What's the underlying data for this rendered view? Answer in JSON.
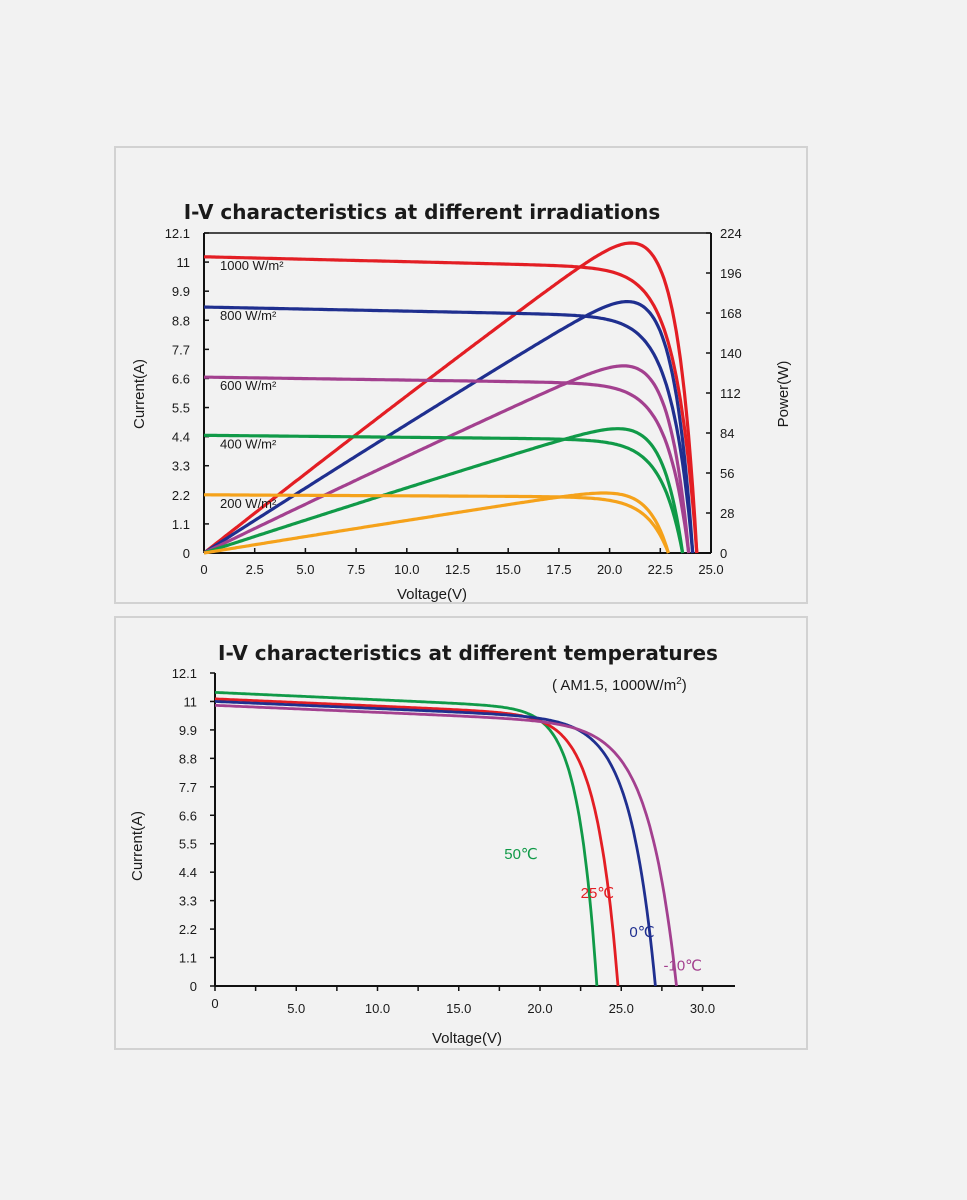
{
  "chart_data": [
    {
      "type": "line",
      "title": "I-V characteristics at different irradiations",
      "xlabel": "Voltage(V)",
      "ylabel": "Current(A)",
      "y2label": "Power(W)",
      "xlim": [
        0,
        25
      ],
      "ylim": [
        0,
        12.1
      ],
      "y2lim": [
        0,
        224
      ],
      "x_ticks": [
        "0",
        "2.5",
        "5.0",
        "7.5",
        "10.0",
        "12.5",
        "15.0",
        "17.5",
        "20.0",
        "22.5",
        "25.0"
      ],
      "y_ticks": [
        "0",
        "1.1",
        "2.2",
        "3.3",
        "4.4",
        "5.5",
        "6.6",
        "7.7",
        "8.8",
        "9.9",
        "11",
        "12.1"
      ],
      "y2_ticks": [
        "0",
        "28",
        "56",
        "84",
        "112",
        "140",
        "168",
        "196",
        "224"
      ],
      "series": [
        {
          "name": "1000 W/m²",
          "color": "#e31e24",
          "isc": 11.2,
          "voc": 24.3,
          "pmax": 217,
          "vmp": 19.8
        },
        {
          "name": "800 W/m²",
          "color": "#1f2f8f",
          "isc": 9.3,
          "voc": 24.1,
          "pmax": 176,
          "vmp": 19.8
        },
        {
          "name": "600 W/m²",
          "color": "#a3408f",
          "isc": 6.65,
          "voc": 23.9,
          "pmax": 131,
          "vmp": 19.7
        },
        {
          "name": "400 W/m²",
          "color": "#109a48",
          "isc": 4.45,
          "voc": 23.6,
          "pmax": 87,
          "vmp": 19.7
        },
        {
          "name": "200 W/m²",
          "color": "#f5a21b",
          "isc": 2.2,
          "voc": 22.9,
          "pmax": 42,
          "vmp": 19.6
        }
      ]
    },
    {
      "type": "line",
      "title": "I-V characteristics at different temperatures",
      "subtitle_main": "( AM1.5,  1000W/m",
      "subtitle_sup": "2",
      "subtitle_end": ")",
      "xlabel": "Voltage(V)",
      "ylabel": "Current(A)",
      "xlim": [
        0,
        32
      ],
      "ylim": [
        0,
        12.1
      ],
      "x_ticks": [
        "0",
        "5.0",
        "10.0",
        "15.0",
        "20.0",
        "25.0",
        "30.0"
      ],
      "y_ticks": [
        "0",
        "1.1",
        "2.2",
        "3.3",
        "4.4",
        "5.5",
        "6.6",
        "7.7",
        "8.8",
        "9.9",
        "11",
        "12.1"
      ],
      "series": [
        {
          "name": "50℃",
          "color": "#109a48",
          "isc": 11.35,
          "voc": 23.5
        },
        {
          "name": "25℃",
          "color": "#e31e24",
          "isc": 11.1,
          "voc": 24.8
        },
        {
          "name": "0℃",
          "color": "#1f2f8f",
          "isc": 11.0,
          "voc": 27.1
        },
        {
          "name": "-10℃",
          "color": "#a3408f",
          "isc": 10.85,
          "voc": 28.4
        }
      ]
    }
  ]
}
